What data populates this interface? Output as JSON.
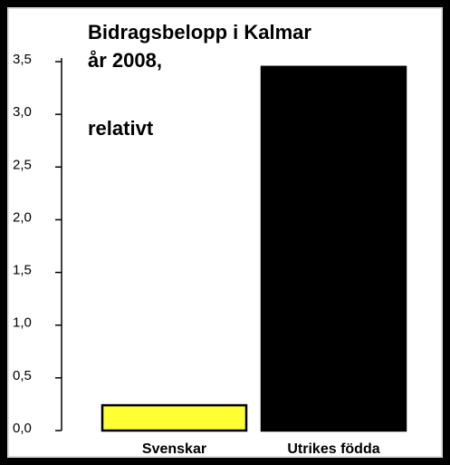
{
  "chart_data": {
    "type": "bar",
    "title": [
      "Bidragsbelopp i Kalmar",
      "år 2008,",
      "relativt"
    ],
    "categories": [
      "Svenskar",
      "Utrikes födda"
    ],
    "values": [
      0.24,
      3.45
    ],
    "colors": [
      "#ffff33",
      "#000000"
    ],
    "ylim": [
      0,
      3.5
    ],
    "yticks": [
      {
        "value": 0,
        "label": "0,0"
      },
      {
        "value": 0.5,
        "label": "0,5"
      },
      {
        "value": 1,
        "label": "1,0"
      },
      {
        "value": 1.5,
        "label": "1,5"
      },
      {
        "value": 2,
        "label": "2,0"
      },
      {
        "value": 2.5,
        "label": "2,5"
      },
      {
        "value": 3,
        "label": "3,0"
      },
      {
        "value": 3.5,
        "label": "3,5"
      }
    ],
    "grid": false
  }
}
